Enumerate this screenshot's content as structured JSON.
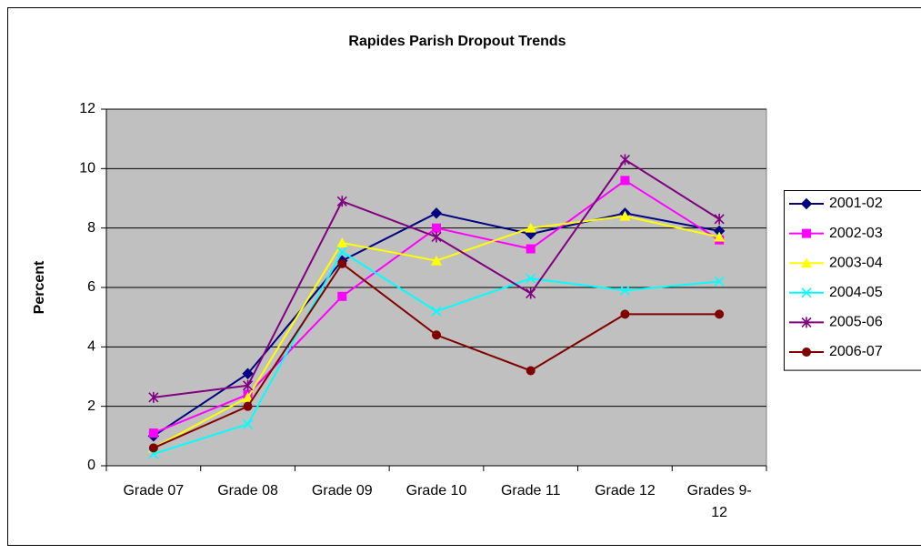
{
  "chart_data": {
    "type": "line",
    "title": "Rapides Parish Dropout Trends",
    "y_label": "Percent",
    "categories": [
      "Grade 07",
      "Grade 08",
      "Grade 09",
      "Grade 10",
      "Grade 11",
      "Grade 12",
      "Grades 9-12"
    ],
    "series": [
      {
        "name": "2001-02",
        "color": "#000080",
        "marker": "diamond",
        "values": [
          1.0,
          3.1,
          6.9,
          8.5,
          7.8,
          8.5,
          7.9
        ]
      },
      {
        "name": "2002-03",
        "color": "#ff00ff",
        "marker": "square",
        "values": [
          1.1,
          2.4,
          5.7,
          8.0,
          7.3,
          9.6,
          7.6
        ]
      },
      {
        "name": "2003-04",
        "color": "#ffff00",
        "marker": "triangle",
        "values": [
          0.6,
          2.3,
          7.5,
          6.9,
          8.0,
          8.4,
          7.7
        ]
      },
      {
        "name": "2004-05",
        "color": "#00ffff",
        "marker": "x",
        "values": [
          0.4,
          1.4,
          7.2,
          5.2,
          6.3,
          5.9,
          6.2
        ]
      },
      {
        "name": "2005-06",
        "color": "#800080",
        "marker": "star",
        "values": [
          2.3,
          2.7,
          8.9,
          7.7,
          5.8,
          10.3,
          8.3
        ]
      },
      {
        "name": "2006-07",
        "color": "#800000",
        "marker": "circle",
        "values": [
          0.6,
          2.0,
          6.8,
          4.4,
          3.2,
          5.1,
          5.1
        ]
      }
    ],
    "ylim": [
      0,
      12
    ],
    "yticks": [
      0,
      2,
      4,
      6,
      8,
      10,
      12
    ],
    "grid": true,
    "legend": "right"
  }
}
